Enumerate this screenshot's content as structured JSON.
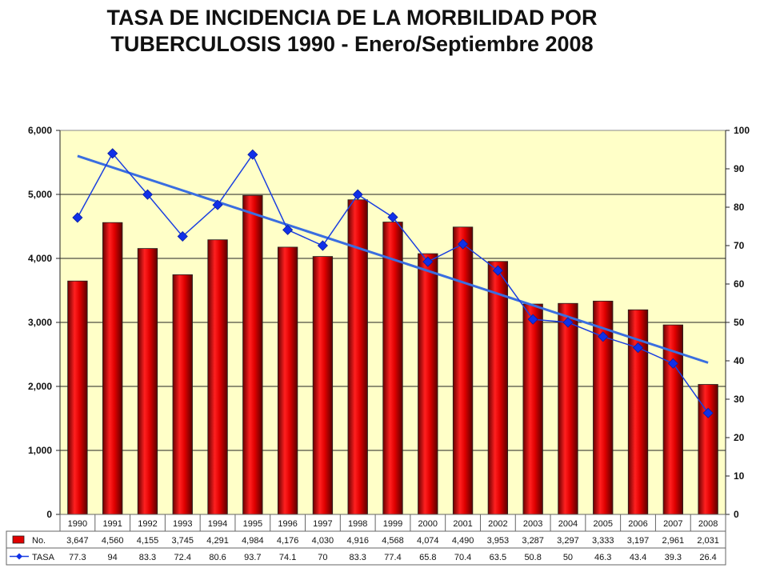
{
  "title_line1": "TASA DE INCIDENCIA DE LA MORBILIDAD POR",
  "title_line2": "TUBERCULOSIS 1990 - Enero/Septiembre 2008",
  "chart_data": {
    "type": "bar",
    "categories": [
      "1990",
      "1991",
      "1992",
      "1993",
      "1994",
      "1995",
      "1996",
      "1997",
      "1998",
      "1999",
      "2000",
      "2001",
      "2002",
      "2003",
      "2004",
      "2005",
      "2006",
      "2007",
      "2008"
    ],
    "series": [
      {
        "name": "No.",
        "type": "bar",
        "axis": "left",
        "color": "#e00000",
        "values": [
          3647,
          4560,
          4155,
          3745,
          4291,
          4984,
          4176,
          4030,
          4916,
          4568,
          4074,
          4490,
          3953,
          3287,
          3297,
          3333,
          3197,
          2961,
          2031
        ],
        "labels": [
          "3,647",
          "4,560",
          "4,155",
          "3,745",
          "4,291",
          "4,984",
          "4,176",
          "4,030",
          "4,916",
          "4,568",
          "4,074",
          "4,490",
          "3,953",
          "3,287",
          "3,297",
          "3,333",
          "3,197",
          "2,961",
          "2,031"
        ]
      },
      {
        "name": "TASA",
        "type": "line",
        "axis": "right",
        "color": "#1a3fe0",
        "marker": "diamond",
        "values": [
          77.3,
          94,
          83.3,
          72.4,
          80.6,
          93.7,
          74.1,
          70,
          83.3,
          77.4,
          65.8,
          70.4,
          63.5,
          50.8,
          50,
          46.3,
          43.4,
          39.3,
          26.4
        ],
        "labels": [
          "77.3",
          "94",
          "83.3",
          "72.4",
          "80.6",
          "93.7",
          "74.1",
          "70",
          "83.3",
          "77.4",
          "65.8",
          "70.4",
          "63.5",
          "50.8",
          "50",
          "46.3",
          "43.4",
          "39.3",
          "26.4"
        ]
      }
    ],
    "trendline": {
      "series": "TASA",
      "type": "linear",
      "color": "#3a6ee0"
    },
    "y_left": {
      "min": 0,
      "max": 6000,
      "ticks": [
        "0",
        "1,000",
        "2,000",
        "3,000",
        "4,000",
        "5,000",
        "6,000"
      ],
      "tick_values": [
        0,
        1000,
        2000,
        3000,
        4000,
        5000,
        6000
      ]
    },
    "y_right": {
      "min": 0,
      "max": 100,
      "ticks": [
        "0",
        "10",
        "20",
        "30",
        "40",
        "50",
        "60",
        "70",
        "80",
        "90",
        "100"
      ],
      "tick_values": [
        0,
        10,
        20,
        30,
        40,
        50,
        60,
        70,
        80,
        90,
        100
      ]
    },
    "plot_background": "#ffffc8",
    "grid": true,
    "legend": "data-table"
  }
}
